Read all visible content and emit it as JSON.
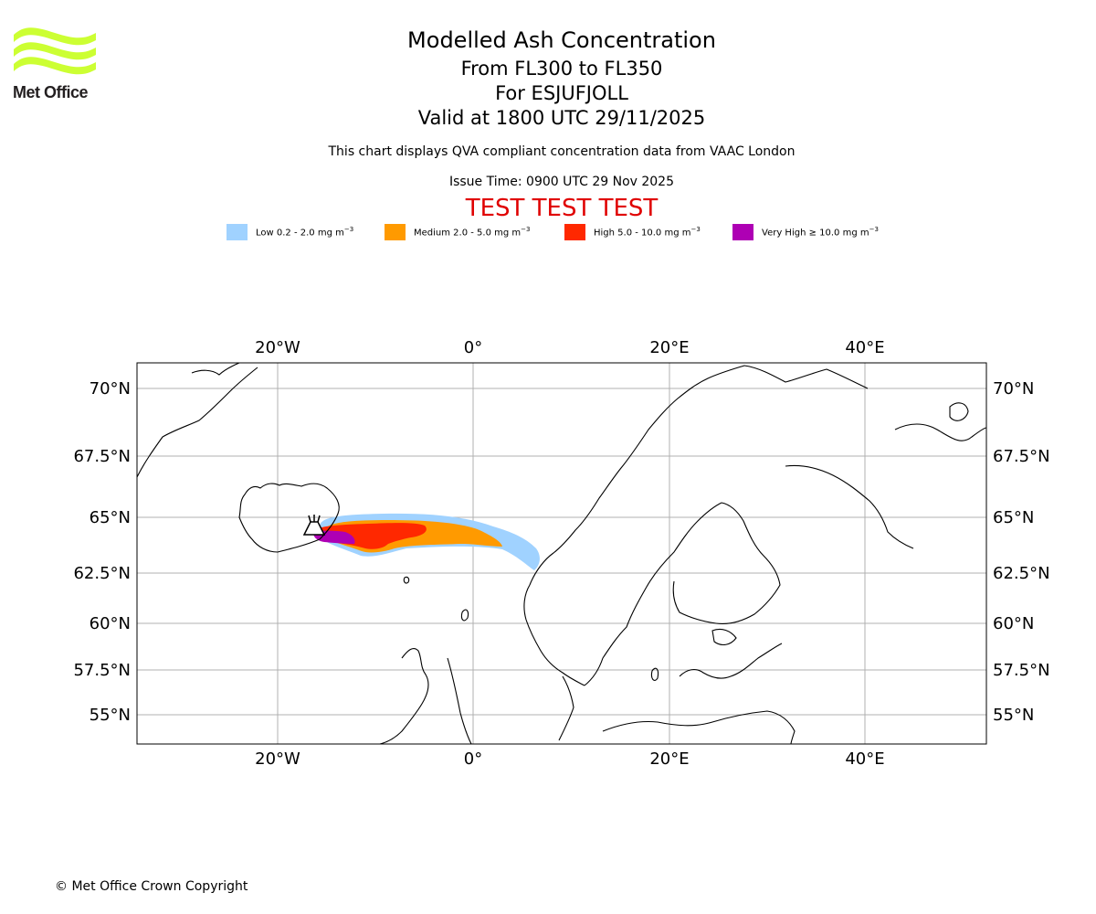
{
  "brand": {
    "name": "Met Office",
    "logo_color": "#ccff33"
  },
  "header": {
    "title": "Modelled Ash Concentration",
    "levels": "From FL300 to FL350",
    "volcano": "For ESJUFJOLL",
    "valid": "Valid at 1800 UTC 29/11/2025",
    "description": "This chart displays QVA compliant concentration data from VAAC London",
    "issue_time": "Issue Time: 0900 UTC 29 Nov 2025",
    "test_banner": "TEST TEST TEST",
    "test_color": "#e00000"
  },
  "legend": [
    {
      "label": "Low 0.2 - 2.0 mg m",
      "unit_exp": "−3",
      "color": "#a0d2ff"
    },
    {
      "label": "Medium 2.0 - 5.0 mg m",
      "unit_exp": "−3",
      "color": "#ff9a00"
    },
    {
      "label": "High 5.0 - 10.0 mg m",
      "unit_exp": "−3",
      "color": "#ff2800"
    },
    {
      "label": "Very High  ≥  10.0 mg m",
      "unit_exp": "−3",
      "color": "#ae00b4"
    }
  ],
  "map": {
    "lon_range": [
      -34,
      52
    ],
    "lat_range": [
      53.5,
      71
    ],
    "lon_ticks": [
      "20°W",
      "0°",
      "20°E",
      "40°E"
    ],
    "lat_ticks": [
      "70°N",
      "67.5°N",
      "65°N",
      "62.5°N",
      "60°N",
      "57.5°N",
      "55°N"
    ],
    "volcano_icon": "volcano-icon"
  },
  "footer": {
    "copyright": "© Met Office Crown Copyright"
  }
}
